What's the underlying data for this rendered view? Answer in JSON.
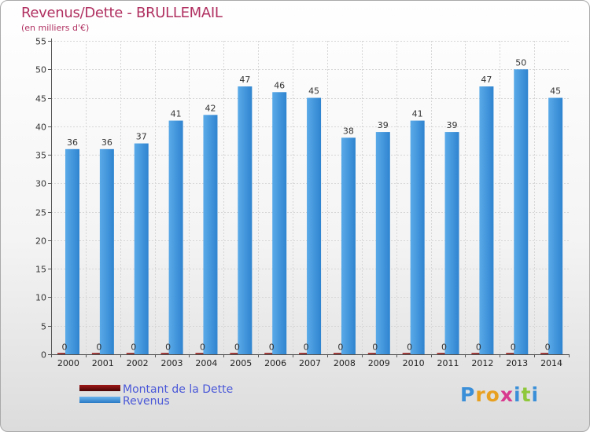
{
  "chart_data": {
    "type": "bar",
    "title": "Revenus/Dette - BRULLEMAIL",
    "subtitle": "(en milliers d'€)",
    "categories": [
      "2000",
      "2001",
      "2002",
      "2003",
      "2004",
      "2005",
      "2006",
      "2007",
      "2008",
      "2009",
      "2010",
      "2011",
      "2012",
      "2013",
      "2014"
    ],
    "series": [
      {
        "name": "Montant de la Dette",
        "color": "#6b0a0a",
        "values": [
          0,
          0,
          0,
          0,
          0,
          0,
          0,
          0,
          0,
          0,
          0,
          0,
          0,
          0,
          0
        ]
      },
      {
        "name": "Revenus",
        "color": "#3a8fd8",
        "values": [
          36,
          36,
          37,
          41,
          42,
          47,
          46,
          45,
          38,
          39,
          41,
          39,
          47,
          50,
          45
        ]
      }
    ],
    "ylim": [
      0,
      55
    ],
    "yticks": [
      0,
      5,
      10,
      15,
      20,
      25,
      30,
      35,
      40,
      45,
      50,
      55
    ],
    "grid": true,
    "legend_position": "bottom-left"
  },
  "legend": {
    "debt_label": "Montant de la Dette",
    "revenue_label": "Revenus"
  },
  "logo": {
    "letters": [
      "P",
      "r",
      "o",
      "x",
      "i",
      "t",
      "i"
    ],
    "colors": [
      "#3a8fd8",
      "#e8a020",
      "#e8a020",
      "#d83a8f",
      "#3a8fd8",
      "#8fc83a",
      "#3a8fd8"
    ]
  }
}
